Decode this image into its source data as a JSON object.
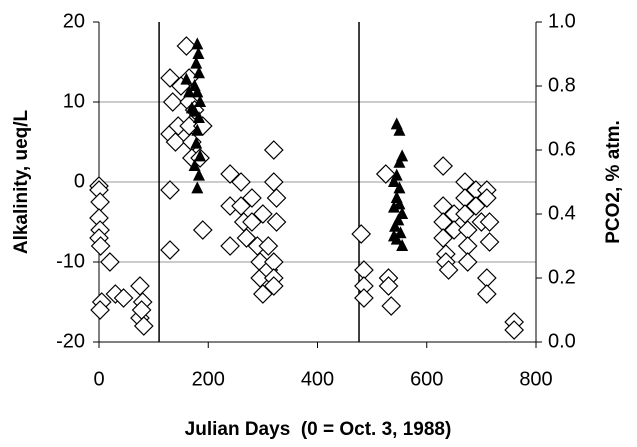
{
  "chart_data": {
    "type": "scatter",
    "xlabel": "Julian Days  (0 = Oct. 3, 1988)",
    "ylabel": "Alkalinity, ueq/L",
    "y2label": "PCO2, % atm.",
    "xlim": [
      0,
      800
    ],
    "xticks": [
      0,
      200,
      400,
      600,
      800
    ],
    "ylim": [
      -20,
      20
    ],
    "yticks": [
      -20,
      -10,
      0,
      10,
      20
    ],
    "y2lim": [
      0,
      1
    ],
    "y2ticks": [
      {
        "value": 0,
        "label": "0.0"
      },
      0.2,
      0.4,
      0.6,
      0.8,
      {
        "value": 1,
        "label": "1.0"
      }
    ],
    "grid": true,
    "grid_color": "#999999",
    "vlines": [
      110,
      476
    ],
    "series": [
      {
        "marker": "diamond",
        "color": "#ffffff",
        "edgecolor": "#000000",
        "x": [
          0,
          0,
          2,
          0,
          2,
          0,
          3,
          5,
          2,
          20,
          30,
          45,
          75,
          80,
          75,
          82,
          78,
          130,
          135,
          130,
          140,
          130,
          130,
          145,
          160,
          165,
          165,
          165,
          170,
          170,
          190,
          190,
          185,
          150,
          175,
          240,
          240,
          240,
          260,
          260,
          265,
          270,
          280,
          280,
          290,
          295,
          295,
          300,
          300,
          310,
          310,
          320,
          320,
          325,
          325,
          320,
          320,
          320,
          480,
          485,
          485,
          485,
          525,
          530,
          530,
          535,
          630,
          630,
          630,
          630,
          635,
          635,
          640,
          650,
          650,
          670,
          670,
          670,
          675,
          675,
          675,
          690,
          690,
          700,
          710,
          710,
          715,
          715,
          710,
          710,
          760,
          760
        ],
        "values": [
          -0.5,
          -1,
          -2.5,
          -4.5,
          -6,
          -7,
          -8,
          -15,
          -16,
          -10,
          -14,
          -14.5,
          -13,
          -15,
          -17,
          -18,
          -16,
          13,
          10,
          6,
          5,
          -1,
          -8.5,
          7,
          17,
          13,
          10,
          7,
          5,
          3,
          7,
          -6,
          3,
          12,
          9,
          1,
          -3,
          -8,
          0,
          -3,
          -5,
          -7,
          -2,
          -5,
          -8,
          -10,
          -12,
          -14,
          -4,
          -8,
          -11,
          4,
          0,
          -2,
          -5,
          -10,
          -12,
          -13,
          -6.5,
          -11,
          -13,
          -14.5,
          1,
          -12,
          -13,
          -15.5,
          2,
          -3,
          -5,
          -7,
          -9,
          -10,
          -11,
          -4,
          -6,
          0,
          -2,
          -4,
          -6,
          -8,
          -10,
          -1,
          -3,
          -5,
          -1,
          -2,
          -5,
          -7.5,
          -12,
          -14,
          -17.5,
          -18.5
        ]
      },
      {
        "marker": "triangle",
        "color": "#000000",
        "axis": "y2",
        "x": [
          180,
          182,
          178,
          183,
          175,
          180,
          185,
          175,
          183,
          180,
          178,
          185,
          183,
          180,
          175,
          170,
          160,
          165,
          545,
          550,
          555,
          550,
          545,
          540,
          550,
          545,
          540,
          555,
          548,
          542,
          552,
          545,
          555,
          540,
          550
        ],
        "values": [
          0.93,
          0.9,
          0.87,
          0.84,
          0.8,
          0.78,
          0.75,
          0.72,
          0.7,
          0.66,
          0.62,
          0.58,
          0.52,
          0.48,
          0.55,
          0.73,
          0.82,
          0.78,
          0.68,
          0.66,
          0.58,
          0.56,
          0.52,
          0.5,
          0.48,
          0.45,
          0.42,
          0.4,
          0.38,
          0.36,
          0.34,
          0.32,
          0.3,
          0.33,
          0.43
        ]
      }
    ]
  }
}
